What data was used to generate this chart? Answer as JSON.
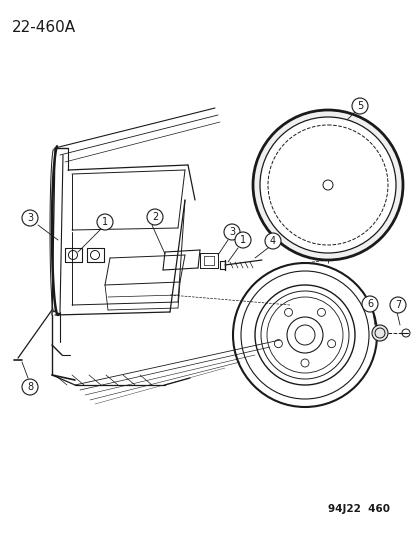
{
  "title": "22-460A",
  "watermark": "94J22  460",
  "bg_color": "#ffffff",
  "line_color": "#1a1a1a",
  "title_fontsize": 11,
  "watermark_fontsize": 7.5,
  "fig_width": 4.14,
  "fig_height": 5.33,
  "dpi": 100
}
